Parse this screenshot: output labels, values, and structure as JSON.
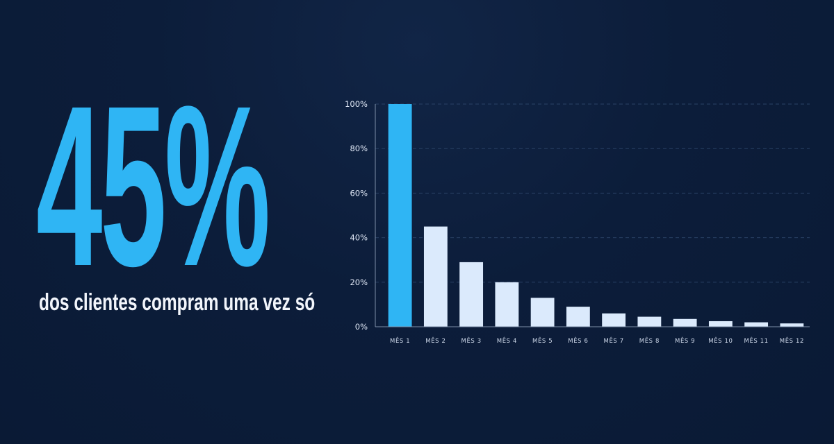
{
  "headline": {
    "value": "45%",
    "subtitle": "dos clientes compram uma vez só"
  },
  "colors": {
    "background": "#0b1c38",
    "accent": "#2fb5f4",
    "bar_light": "#dbeafc",
    "gridline": "#2a4266",
    "axis": "#7e8fa8"
  },
  "chart_data": {
    "type": "bar",
    "categories": [
      "MÊS 1",
      "MÊS 2",
      "MÊS 3",
      "MÊS 4",
      "MÊS 5",
      "MÊS 6",
      "MÊS 7",
      "MÊS 8",
      "MÊS 9",
      "MÊS 10",
      "MÊS 11",
      "MÊS 12"
    ],
    "values": [
      100,
      45,
      29,
      20,
      13,
      9,
      6,
      4.5,
      3.5,
      2.5,
      2,
      1.5
    ],
    "highlight_index": 0,
    "ylim": [
      0,
      100
    ],
    "yticks": [
      0,
      20,
      40,
      60,
      80,
      100
    ],
    "ytick_labels": [
      "0%",
      "20%",
      "40%",
      "60%",
      "80%",
      "100%"
    ],
    "grid": true,
    "grid_style": "dashed",
    "legend": "none"
  }
}
